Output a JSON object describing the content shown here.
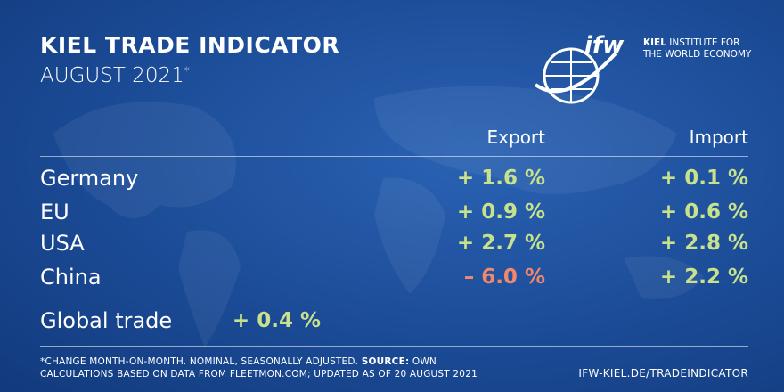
{
  "header": {
    "title": "KIEL TRADE INDICATOR",
    "subtitle": "AUGUST 2021",
    "subtitle_mark": "*"
  },
  "logo": {
    "mark": "ifw",
    "line1_bold": "KIEL",
    "line1_rest": "INSTITUTE FOR",
    "line2": "THE WORLD ECONOMY"
  },
  "table": {
    "columns": [
      "Export",
      "Import"
    ],
    "rows": [
      [
        "Germany",
        "+ 1.6 %",
        "+ 0.1 %"
      ],
      [
        "EU",
        "+ 0.9 %",
        "+ 0.6 %"
      ],
      [
        "USA",
        "+ 2.7 %",
        "+ 2.8 %"
      ],
      [
        "China",
        "– 6.0 %",
        "+ 2.2 %"
      ]
    ]
  },
  "global": {
    "label": "Global trade",
    "value": "+ 0.4 %"
  },
  "footnote": {
    "part1": "*CHANGE MONTH-ON-MONTH. NOMINAL, SEASONALLY ADJUSTED.",
    "source": "SOURCE:",
    "part2": "OWN",
    "line2": "CALCULATIONS BASED ON DATA FROM FLEETMON.COM; UPDATED AS OF 20 AUGUST 2021"
  },
  "url": "IFW-KIEL.DE/TRADEINDICATOR"
}
